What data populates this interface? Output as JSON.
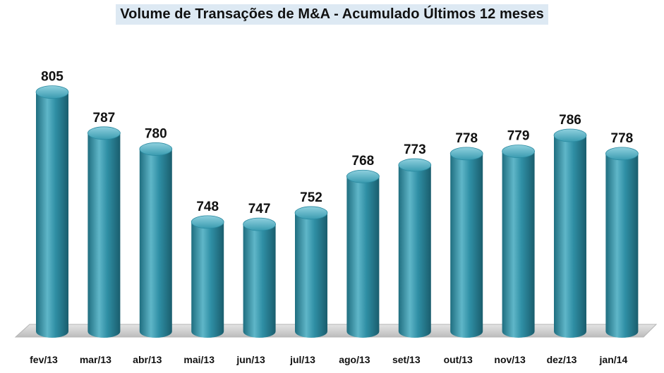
{
  "chart_data": {
    "type": "bar",
    "title": "Volume de Transações de M&A - Acumulado Últimos 12 meses",
    "categories": [
      "fev/13",
      "mar/13",
      "abr/13",
      "mai/13",
      "jun/13",
      "jul/13",
      "ago/13",
      "set/13",
      "out/13",
      "nov/13",
      "dez/13",
      "jan/14"
    ],
    "values": [
      805,
      787,
      780,
      748,
      747,
      752,
      768,
      773,
      778,
      779,
      786,
      778
    ],
    "value_labels": [
      "805",
      "787",
      "780",
      "748",
      "747",
      "752",
      "768",
      "773",
      "778",
      "779",
      "786",
      "778"
    ],
    "ylim": [
      700,
      812
    ],
    "grid": false,
    "legend": "none",
    "bar_style": "3d-cylinder",
    "colors": {
      "bar": "#2f8fa5",
      "bar_dark": "#1d6577",
      "bar_light": "#7cc3d3",
      "floor": "#c9c9c9"
    }
  }
}
